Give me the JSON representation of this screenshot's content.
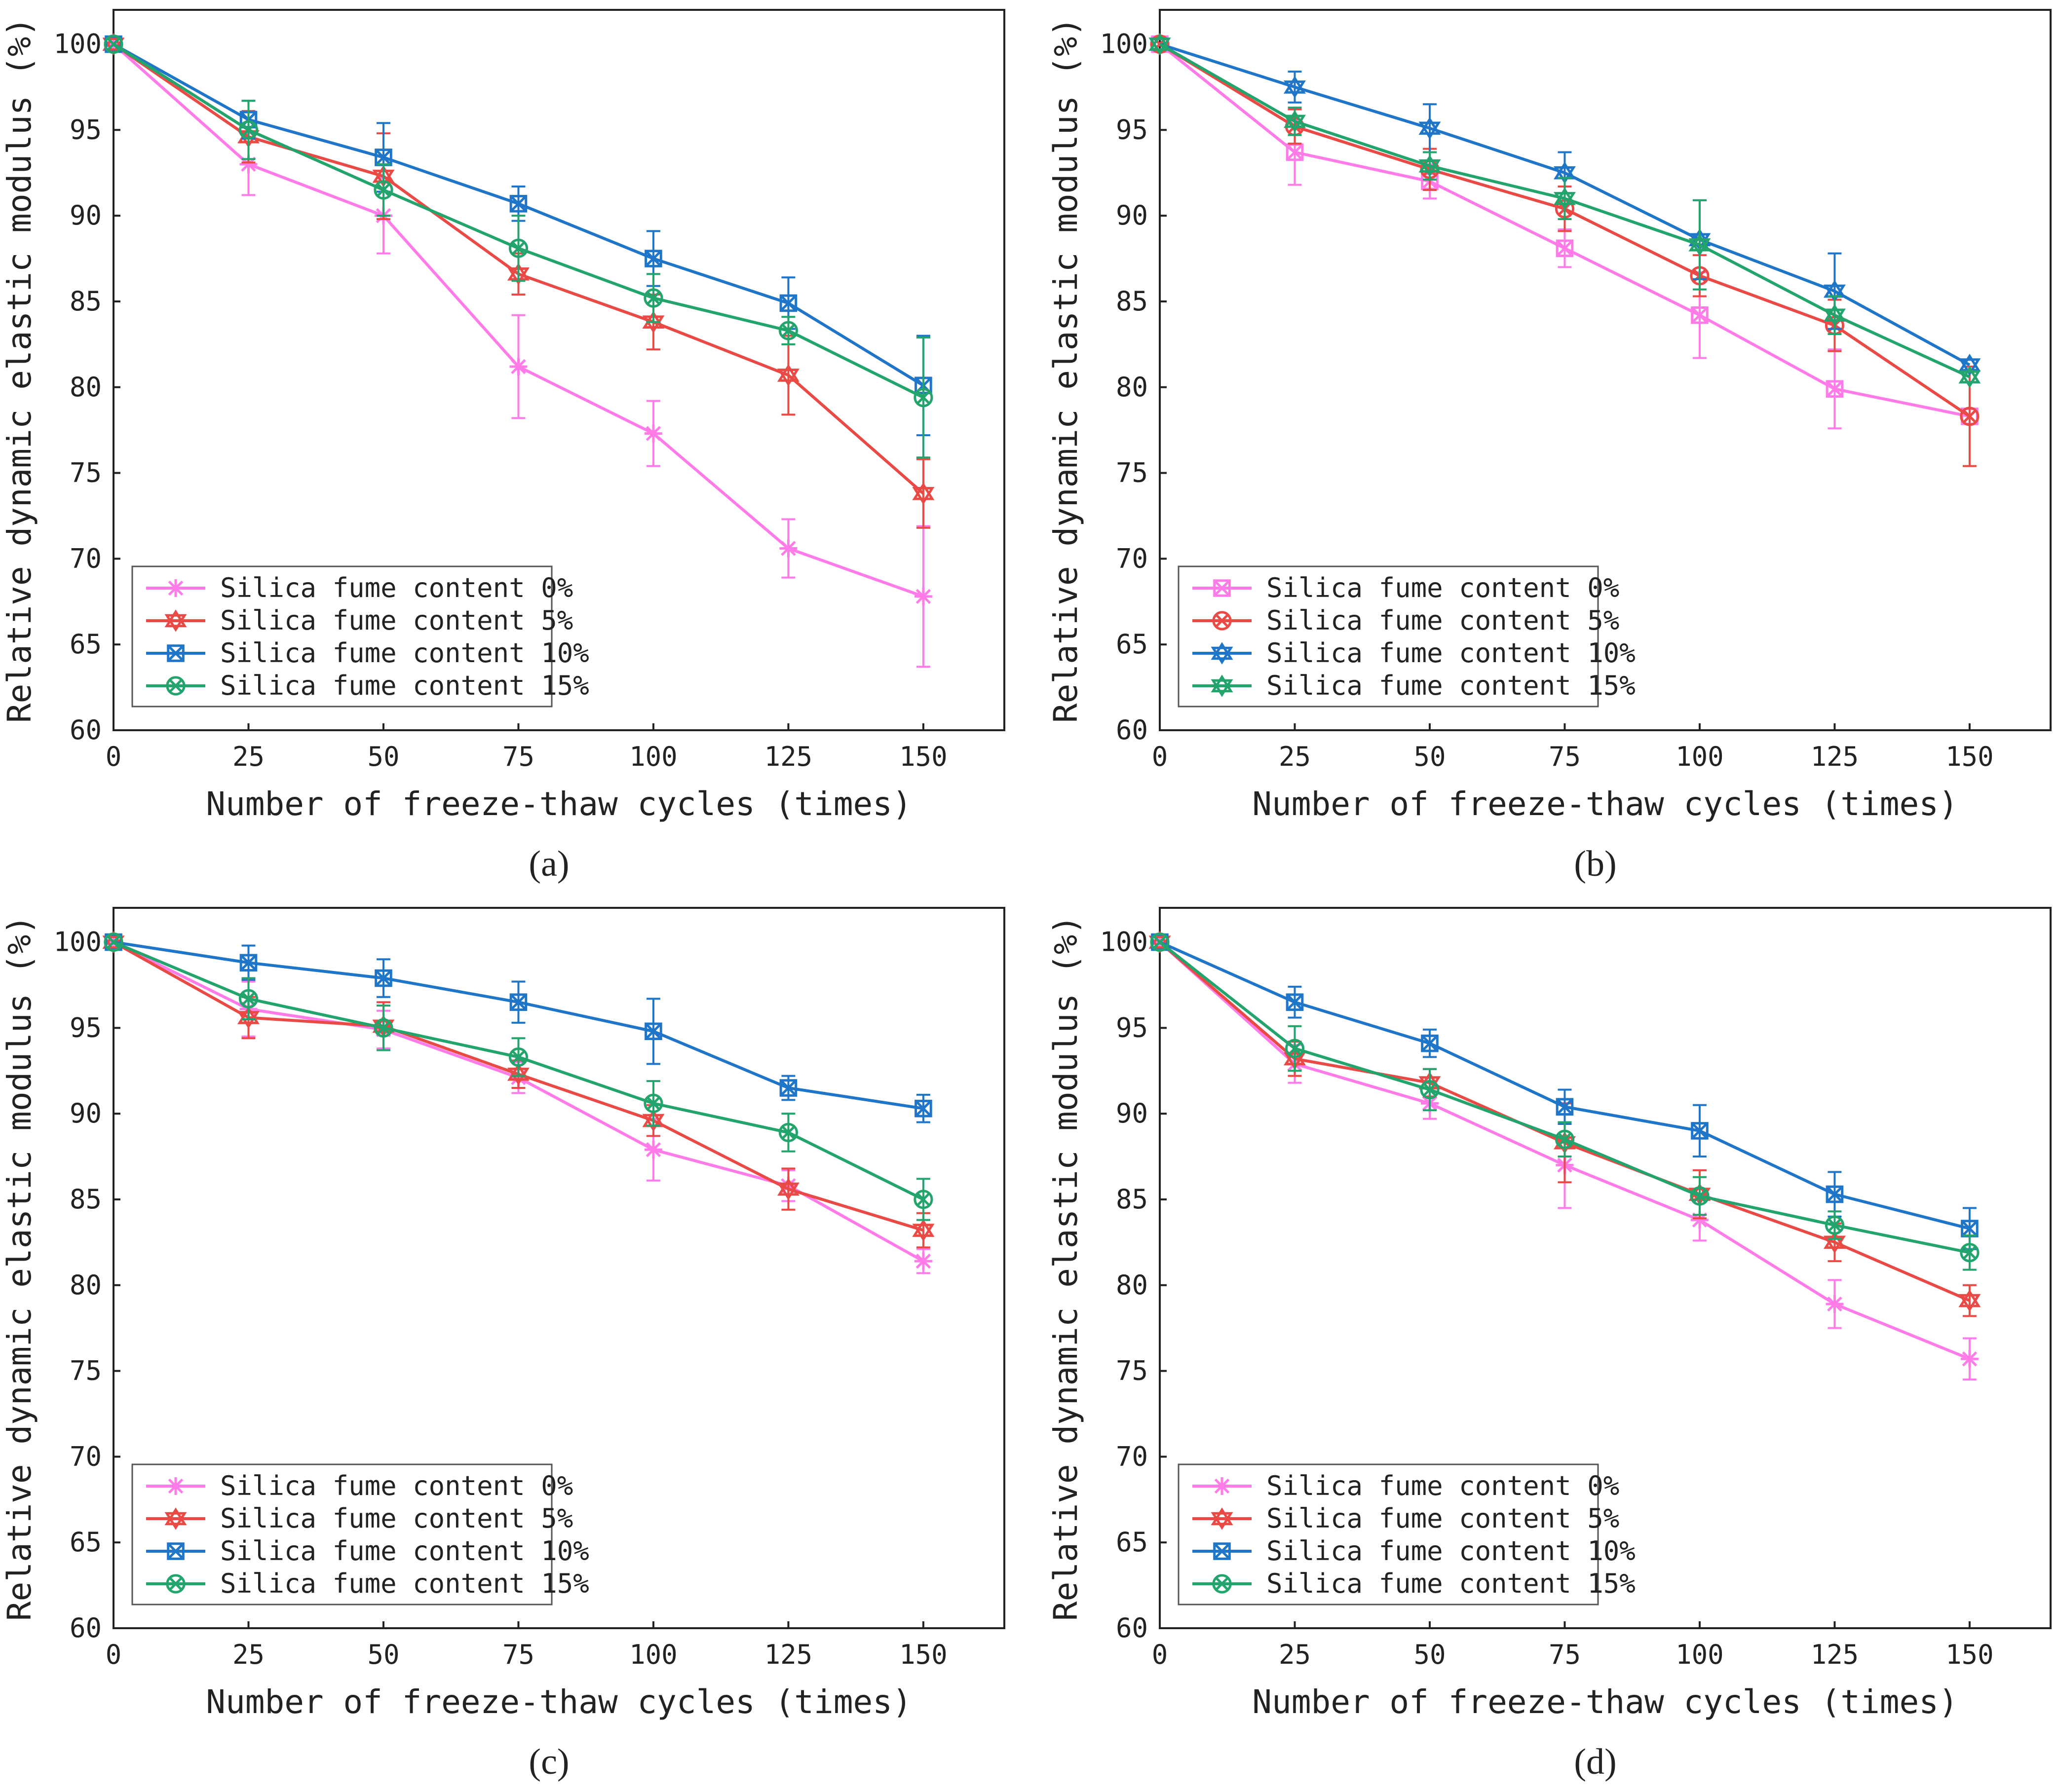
{
  "figure": {
    "x_axis_title": "Number of freeze-thaw cycles (times)",
    "y_axis_title": "Relative dynamic elastic modulus (%)"
  },
  "colors": {
    "0%": "#ff7be8",
    "5%": "#ea4a45",
    "10%": "#1f75c8",
    "15%": "#23a46d",
    "axis": "#222222"
  },
  "chart_data": [
    {
      "type": "line",
      "panel": "a",
      "title": "(a)",
      "xlabel": "Number of freeze-thaw cycles (times)",
      "ylabel": "Relative dynamic elastic modulus (%)",
      "x": [
        0,
        25,
        50,
        75,
        100,
        125,
        150
      ],
      "xlim": [
        0,
        165
      ],
      "ylim": [
        60,
        102
      ],
      "xticks": [
        0,
        25,
        50,
        75,
        100,
        125,
        150
      ],
      "yticks": [
        60,
        65,
        70,
        75,
        80,
        85,
        90,
        95,
        100
      ],
      "legend_position": "bottom-left",
      "series": [
        {
          "name": "Silica fume content 0%",
          "key": "0%",
          "marker": "asterisk",
          "values": [
            100,
            93.0,
            90.0,
            81.2,
            77.3,
            70.6,
            67.8
          ],
          "errors": [
            0,
            1.8,
            2.2,
            3.0,
            1.9,
            1.7,
            4.1
          ]
        },
        {
          "name": "Silica fume content 5%",
          "key": "5%",
          "marker": "star",
          "values": [
            100,
            94.6,
            92.3,
            86.6,
            83.8,
            80.7,
            73.8
          ],
          "errors": [
            0,
            1.5,
            2.5,
            1.2,
            1.6,
            2.3,
            2.0
          ]
        },
        {
          "name": "Silica fume content 10%",
          "key": "10%",
          "marker": "square-x",
          "values": [
            100,
            95.6,
            93.4,
            90.7,
            87.5,
            84.9,
            80.1
          ],
          "errors": [
            0,
            1.1,
            2.0,
            1.0,
            1.6,
            1.5,
            2.9
          ]
        },
        {
          "name": "Silica fume content 15%",
          "key": "15%",
          "marker": "circle-x",
          "values": [
            100,
            95.0,
            91.5,
            88.1,
            85.2,
            83.3,
            79.4
          ],
          "errors": [
            0,
            1.7,
            1.5,
            1.9,
            1.4,
            0.8,
            3.5
          ]
        }
      ]
    },
    {
      "type": "line",
      "panel": "b",
      "title": "(b)",
      "xlabel": "Number of freeze-thaw cycles (times)",
      "ylabel": "Relative dynamic elastic modulus (%)",
      "x": [
        0,
        25,
        50,
        75,
        100,
        125,
        150
      ],
      "xlim": [
        0,
        165
      ],
      "ylim": [
        60,
        102
      ],
      "xticks": [
        0,
        25,
        50,
        75,
        100,
        125,
        150
      ],
      "yticks": [
        60,
        65,
        70,
        75,
        80,
        85,
        90,
        95,
        100
      ],
      "legend_position": "bottom-left",
      "series": [
        {
          "name": "Silica fume content 0%",
          "key": "0%",
          "marker": "square-x",
          "values": [
            100,
            93.7,
            92.0,
            88.1,
            84.2,
            79.9,
            78.3
          ],
          "errors": [
            0,
            1.9,
            1.0,
            1.1,
            2.5,
            2.3,
            0.0
          ]
        },
        {
          "name": "Silica fume content 5%",
          "key": "5%",
          "marker": "circle-x",
          "values": [
            100,
            95.2,
            92.7,
            90.4,
            86.5,
            83.6,
            78.3
          ],
          "errors": [
            0,
            1.0,
            1.2,
            1.3,
            1.2,
            1.5,
            2.9
          ]
        },
        {
          "name": "Silica fume content 10%",
          "key": "10%",
          "marker": "star",
          "values": [
            100,
            97.5,
            95.1,
            92.5,
            88.6,
            85.6,
            81.3
          ],
          "errors": [
            0,
            0.9,
            1.4,
            1.2,
            2.3,
            2.2,
            0.0
          ]
        },
        {
          "name": "Silica fume content 15%",
          "key": "15%",
          "marker": "star",
          "values": [
            100,
            95.5,
            92.9,
            91.0,
            88.3,
            84.2,
            80.6
          ],
          "errors": [
            0,
            0.8,
            0.8,
            1.2,
            2.6,
            1.1,
            0.0
          ]
        }
      ]
    },
    {
      "type": "line",
      "panel": "c",
      "title": "(c)",
      "xlabel": "Number of freeze-thaw cycles (times)",
      "ylabel": "Relative dynamic elastic modulus (%)",
      "x": [
        0,
        25,
        50,
        75,
        100,
        125,
        150
      ],
      "xlim": [
        0,
        165
      ],
      "ylim": [
        60,
        102
      ],
      "xticks": [
        0,
        25,
        50,
        75,
        100,
        125,
        150
      ],
      "yticks": [
        60,
        65,
        70,
        75,
        80,
        85,
        90,
        95,
        100
      ],
      "legend_position": "bottom-left",
      "series": [
        {
          "name": "Silica fume content 0%",
          "key": "0%",
          "marker": "asterisk",
          "values": [
            100,
            96.1,
            94.9,
            92.1,
            87.9,
            85.8,
            81.4
          ],
          "errors": [
            0,
            1.6,
            1.1,
            0.9,
            1.8,
            0.9,
            0.7
          ]
        },
        {
          "name": "Silica fume content 5%",
          "key": "5%",
          "marker": "star",
          "values": [
            100,
            95.6,
            95.1,
            92.3,
            89.6,
            85.6,
            83.2
          ],
          "errors": [
            0,
            1.2,
            1.4,
            0.8,
            0.9,
            1.2,
            1.0
          ]
        },
        {
          "name": "Silica fume content 10%",
          "key": "10%",
          "marker": "square-x",
          "values": [
            100,
            98.8,
            97.9,
            96.5,
            94.8,
            91.5,
            90.3
          ],
          "errors": [
            0,
            1.0,
            1.1,
            1.2,
            1.9,
            0.7,
            0.8
          ]
        },
        {
          "name": "Silica fume content 15%",
          "key": "15%",
          "marker": "circle-x",
          "values": [
            100,
            96.7,
            95.0,
            93.3,
            90.6,
            88.9,
            85.0
          ],
          "errors": [
            0,
            1.2,
            1.3,
            1.1,
            1.3,
            1.1,
            1.2
          ]
        }
      ]
    },
    {
      "type": "line",
      "panel": "d",
      "title": "(d)",
      "xlabel": "Number of freeze-thaw cycles (times)",
      "ylabel": "Relative dynamic elastic modulus (%)",
      "x": [
        0,
        25,
        50,
        75,
        100,
        125,
        150
      ],
      "xlim": [
        0,
        165
      ],
      "ylim": [
        60,
        102
      ],
      "xticks": [
        0,
        25,
        50,
        75,
        100,
        125,
        150
      ],
      "yticks": [
        60,
        65,
        70,
        75,
        80,
        85,
        90,
        95,
        100
      ],
      "legend_position": "bottom-left",
      "series": [
        {
          "name": "Silica fume content 0%",
          "key": "0%",
          "marker": "asterisk",
          "values": [
            100,
            92.9,
            90.6,
            87.0,
            83.8,
            78.9,
            75.7
          ],
          "errors": [
            0,
            1.1,
            0.9,
            2.5,
            1.2,
            1.4,
            1.2
          ]
        },
        {
          "name": "Silica fume content 5%",
          "key": "5%",
          "marker": "star",
          "values": [
            100,
            93.2,
            91.8,
            88.3,
            85.3,
            82.5,
            79.1
          ],
          "errors": [
            0,
            1.0,
            0.8,
            2.3,
            1.4,
            1.1,
            0.9
          ]
        },
        {
          "name": "Silica fume content 10%",
          "key": "10%",
          "marker": "square-x",
          "values": [
            100,
            96.5,
            94.1,
            90.4,
            89.0,
            85.3,
            83.3
          ],
          "errors": [
            0,
            0.9,
            0.8,
            1.0,
            1.5,
            1.3,
            1.2
          ]
        },
        {
          "name": "Silica fume content 15%",
          "key": "15%",
          "marker": "circle-x",
          "values": [
            100,
            93.8,
            91.4,
            88.5,
            85.2,
            83.5,
            81.9
          ],
          "errors": [
            0,
            1.3,
            1.2,
            1.0,
            1.1,
            0.8,
            1.0
          ]
        }
      ]
    }
  ]
}
